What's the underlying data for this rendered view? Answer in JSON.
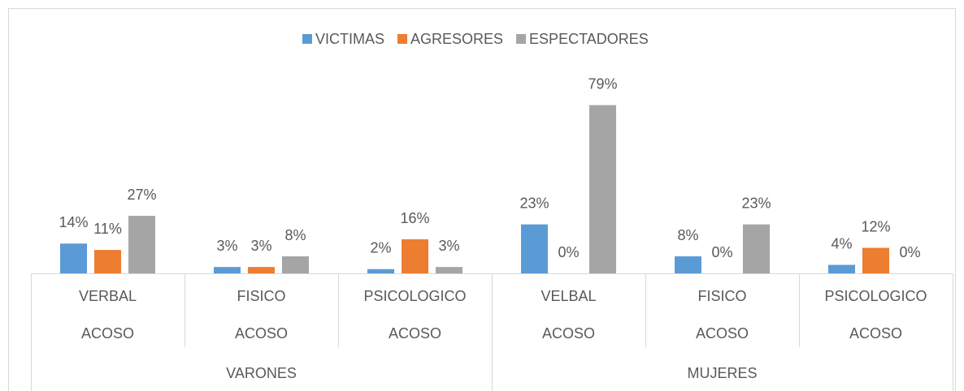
{
  "chart_data": {
    "type": "bar",
    "groups": [
      {
        "name": "VARONES",
        "categories": [
          "VERBAL",
          "FISICO",
          "PSICOLOGICO"
        ],
        "sublabels": [
          "ACOSO",
          "ACOSO",
          "ACOSO"
        ]
      },
      {
        "name": "MUJERES",
        "categories": [
          "VELBAL",
          "FISICO",
          "PSICOLOGICO"
        ],
        "sublabels": [
          "ACOSO",
          "ACOSO",
          "ACOSO"
        ]
      }
    ],
    "series": [
      {
        "name": "VICTIMAS",
        "color": "#5b9bd5",
        "values": [
          14,
          3,
          2,
          23,
          8,
          4
        ],
        "value_labels": [
          "14%",
          "3%",
          "2%",
          "23%",
          "8%",
          "4%"
        ]
      },
      {
        "name": "AGRESORES",
        "color": "#ed7d31",
        "values": [
          11,
          3,
          16,
          0,
          0,
          12
        ],
        "value_labels": [
          "11%",
          "3%",
          "16%",
          "0%",
          "0%",
          "12%"
        ]
      },
      {
        "name": "ESPECTADORES",
        "color": "#a5a5a5",
        "values": [
          27,
          8,
          3,
          79,
          23,
          0
        ],
        "value_labels": [
          "27%",
          "8%",
          "3%",
          "79%",
          "23%",
          "0%"
        ]
      }
    ],
    "ylim": [
      0,
      80
    ],
    "legend": "top"
  }
}
